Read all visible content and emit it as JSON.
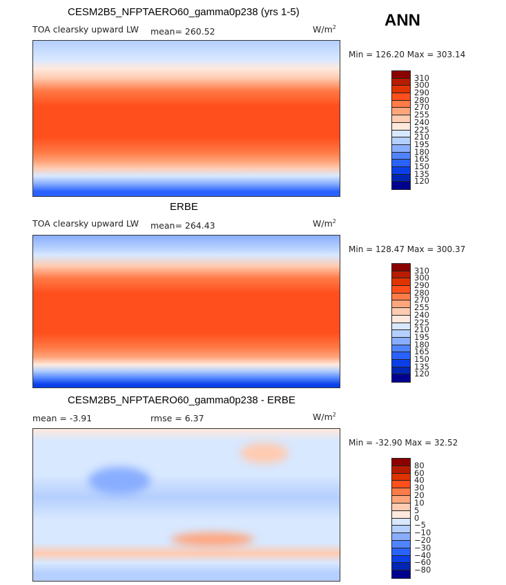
{
  "season": "ANN",
  "panels": [
    {
      "title": "CESM2B5_NFPTAERO60_gamma0p238 (yrs 1-5)",
      "variable": "TOA clearsky upward LW",
      "stat": "mean= 260.52",
      "units": "W/m",
      "units_sup": "2",
      "minmax": "Min = 126.20 Max = 303.14",
      "levels": [
        "310",
        "300",
        "290",
        "280",
        "270",
        "255",
        "240",
        "225",
        "210",
        "195",
        "180",
        "165",
        "150",
        "135",
        "120"
      ]
    },
    {
      "title": "ERBE",
      "variable": "TOA clearsky upward LW",
      "stat": "mean= 264.43",
      "units": "W/m",
      "units_sup": "2",
      "minmax": "Min = 128.47 Max = 300.37",
      "levels": [
        "310",
        "300",
        "290",
        "280",
        "270",
        "255",
        "240",
        "225",
        "210",
        "195",
        "180",
        "165",
        "150",
        "135",
        "120"
      ]
    },
    {
      "title": "CESM2B5_NFPTAERO60_gamma0p238 - ERBE",
      "mean": "mean =   -3.91",
      "rmse": "rmse =    6.37",
      "units": "W/m",
      "units_sup": "2",
      "minmax": "Min = -32.90 Max =  32.52",
      "levels": [
        "80",
        "60",
        "40",
        "30",
        "20",
        "10",
        "5",
        "0",
        "−5",
        "−10",
        "−20",
        "−30",
        "−40",
        "−60",
        "−80"
      ]
    }
  ],
  "colors": [
    "#8b0000",
    "#b81c00",
    "#e03300",
    "#ff4f1c",
    "#ff7b47",
    "#ffa57c",
    "#ffcbb1",
    "#ffe9dd",
    "#d8e8ff",
    "#b5cffe",
    "#89aeff",
    "#4f84ff",
    "#2a62ff",
    "#0b3fe8",
    "#0026b4",
    "#00008f"
  ]
}
